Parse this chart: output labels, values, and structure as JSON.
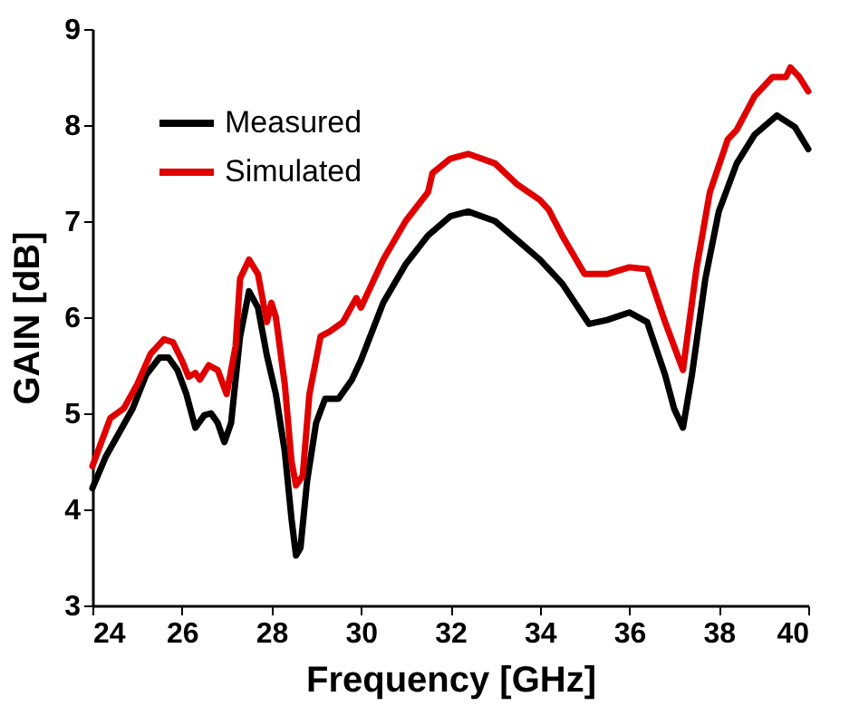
{
  "chart_data": {
    "type": "line",
    "xlabel": "Frequency [GHz]",
    "ylabel": "GAIN [dB]",
    "xlim": [
      24,
      40
    ],
    "xticks": [
      24,
      26,
      28,
      30,
      32,
      34,
      36,
      38,
      40
    ],
    "ylim": [
      3,
      9
    ],
    "yticks": [
      3,
      4,
      5,
      6,
      7,
      8,
      9
    ],
    "grid": false,
    "legend": "top left",
    "line_style": "solid",
    "marker": "none",
    "series": [
      {
        "name": "Measured",
        "color": "#000000",
        "x": [
          24,
          24.3,
          24.6,
          24.9,
          25.2,
          25.5,
          25.7,
          25.9,
          26.1,
          26.3,
          26.5,
          26.65,
          26.8,
          26.95,
          27.1,
          27.3,
          27.5,
          27.7,
          27.9,
          28.1,
          28.3,
          28.45,
          28.55,
          28.65,
          28.8,
          29,
          29.2,
          29.5,
          29.8,
          30,
          30.5,
          31,
          31.5,
          32,
          32.4,
          33,
          33.5,
          34,
          34.5,
          35,
          35.1,
          35.5,
          36,
          36.4,
          36.8,
          37,
          37.2,
          37.4,
          37.7,
          38,
          38.4,
          38.8,
          39.3,
          39.7,
          40
        ],
        "values": [
          4.22,
          4.55,
          4.8,
          5.05,
          5.4,
          5.58,
          5.58,
          5.45,
          5.2,
          4.85,
          4.98,
          5.0,
          4.9,
          4.7,
          4.9,
          5.8,
          6.27,
          6.1,
          5.6,
          5.2,
          4.6,
          3.9,
          3.52,
          3.6,
          4.3,
          4.9,
          5.15,
          5.15,
          5.35,
          5.55,
          6.15,
          6.55,
          6.85,
          7.05,
          7.1,
          7.0,
          6.8,
          6.6,
          6.35,
          6.0,
          5.93,
          5.97,
          6.05,
          5.95,
          5.4,
          5.05,
          4.85,
          5.4,
          6.4,
          7.1,
          7.6,
          7.9,
          8.1,
          7.98,
          7.75
        ]
      },
      {
        "name": "Simulated",
        "color": "#e00000",
        "x": [
          24,
          24.2,
          24.4,
          24.7,
          25,
          25.3,
          25.6,
          25.8,
          26,
          26.15,
          26.3,
          26.4,
          26.6,
          26.8,
          27,
          27.2,
          27.3,
          27.5,
          27.7,
          27.9,
          28.0,
          28.1,
          28.3,
          28.45,
          28.55,
          28.7,
          28.85,
          29.1,
          29.3,
          29.6,
          29.9,
          30,
          30.5,
          31,
          31.5,
          31.6,
          32,
          32.4,
          33,
          33.5,
          34,
          34.2,
          34.5,
          35,
          35.5,
          36,
          36.4,
          36.8,
          37.2,
          37.5,
          37.8,
          38.2,
          38.4,
          38.8,
          39.2,
          39.5,
          39.6,
          39.8,
          40
        ],
        "values": [
          4.45,
          4.7,
          4.95,
          5.05,
          5.3,
          5.62,
          5.77,
          5.74,
          5.55,
          5.38,
          5.42,
          5.35,
          5.5,
          5.45,
          5.2,
          5.7,
          6.4,
          6.6,
          6.45,
          5.95,
          6.15,
          6.0,
          5.3,
          4.5,
          4.25,
          4.35,
          5.2,
          5.8,
          5.85,
          5.95,
          6.2,
          6.1,
          6.6,
          7.0,
          7.3,
          7.5,
          7.65,
          7.7,
          7.6,
          7.38,
          7.22,
          7.12,
          6.85,
          6.45,
          6.45,
          6.52,
          6.5,
          5.95,
          5.45,
          6.5,
          7.3,
          7.85,
          7.95,
          8.3,
          8.5,
          8.5,
          8.6,
          8.5,
          8.35
        ]
      }
    ]
  }
}
